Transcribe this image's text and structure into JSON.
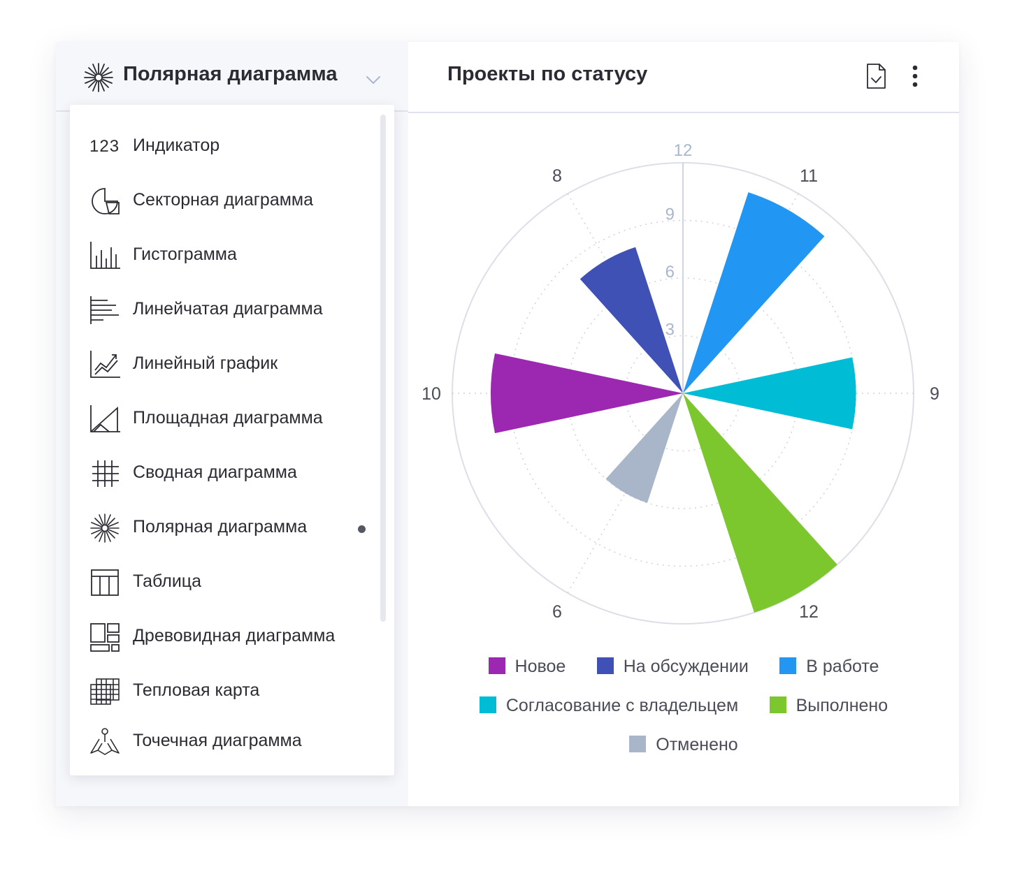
{
  "selector": {
    "icon": "polar-chart-icon",
    "label": "Полярная диаграмма",
    "chevron_icon": "chevron-down-icon"
  },
  "menu": {
    "items": [
      {
        "icon": "number-123-icon",
        "icon_text": "123",
        "label": "Индикатор"
      },
      {
        "icon": "pie-chart-icon",
        "label": "Секторная диаграмма"
      },
      {
        "icon": "column-chart-icon",
        "label": "Гистограмма"
      },
      {
        "icon": "bar-chart-icon",
        "label": "Линейчатая диаграмма"
      },
      {
        "icon": "line-chart-icon",
        "label": "Линейный график"
      },
      {
        "icon": "area-chart-icon",
        "label": "Площадная диаграмма"
      },
      {
        "icon": "pivot-grid-icon",
        "label": "Сводная диаграмма"
      },
      {
        "icon": "polar-chart-icon",
        "label": "Полярная диаграмма",
        "selected": true
      },
      {
        "icon": "table-icon",
        "label": "Таблица"
      },
      {
        "icon": "treemap-icon",
        "label": "Древовидная диаграмма"
      },
      {
        "icon": "heatmap-icon",
        "label": "Тепловая карта"
      },
      {
        "icon": "map-pin-icon",
        "label": "Точечная диаграмма"
      }
    ]
  },
  "header": {
    "title": "Проекты по статусу",
    "export_icon": "file-export-icon",
    "more_icon": "more-vertical-icon"
  },
  "chart_data": {
    "type": "polar-bar",
    "radial_axis": {
      "min": 0,
      "max": 12,
      "ticks": [
        "3",
        "6",
        "9",
        "12"
      ]
    },
    "series": [
      {
        "name": "Новое",
        "value": 10,
        "color": "#9c27b0"
      },
      {
        "name": "На обсуждении",
        "value": 8,
        "color": "#3f51b5"
      },
      {
        "name": "В работе",
        "value": 11,
        "color": "#2196f3"
      },
      {
        "name": "Согласование с владельцем",
        "value": 9,
        "color": "#00bcd4"
      },
      {
        "name": "Выполнено",
        "value": 12,
        "color": "#7cc72d"
      },
      {
        "name": "Отменено",
        "value": 6,
        "color": "#a9b6c9"
      }
    ],
    "grid": true,
    "legend_position": "bottom"
  }
}
